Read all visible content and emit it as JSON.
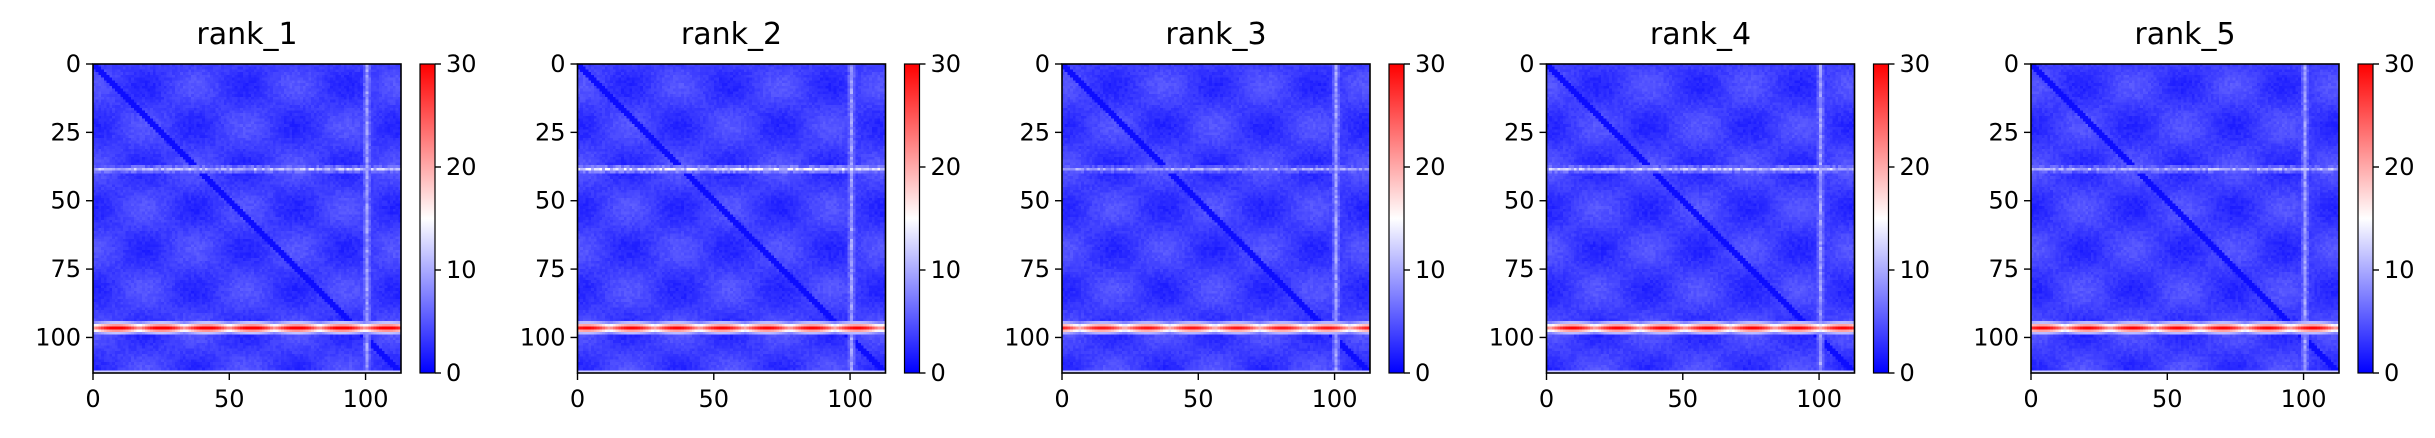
{
  "chart_data": [
    {
      "type": "heatmap",
      "title": "rank_1",
      "xlim": [
        0,
        113
      ],
      "ylim": [
        113,
        0
      ],
      "xticks": [
        0,
        50,
        100
      ],
      "yticks": [
        0,
        25,
        50,
        75,
        100
      ],
      "colorbar": {
        "range": [
          0,
          30
        ],
        "ticks": [
          0,
          10,
          20,
          30
        ],
        "colors": [
          "#0000ff",
          "#ffffff",
          "#ff0000"
        ]
      },
      "matrix_size": 113,
      "features": {
        "diagonal": "low values along the main diagonal",
        "hot_band_row": 96,
        "hot_band_x_range": [
          0,
          113
        ],
        "hot_band_value": 28,
        "warm_band_row": 38,
        "warm_band_value": 13,
        "light_column": 100,
        "light_column_value": 9,
        "bottom_edge_row": 112,
        "bottom_edge_value": 12,
        "background_value": 3
      }
    },
    {
      "type": "heatmap",
      "title": "rank_2",
      "xlim": [
        0,
        113
      ],
      "ylim": [
        113,
        0
      ],
      "xticks": [
        0,
        50,
        100
      ],
      "yticks": [
        0,
        25,
        50,
        75,
        100
      ],
      "colorbar": {
        "range": [
          0,
          30
        ],
        "ticks": [
          0,
          10,
          20,
          30
        ],
        "colors": [
          "#0000ff",
          "#ffffff",
          "#ff0000"
        ]
      },
      "matrix_size": 113,
      "features": {
        "diagonal": "low values along the main diagonal",
        "hot_band_row": 96,
        "hot_band_x_range": [
          0,
          113
        ],
        "hot_band_value": 27,
        "warm_band_row": 38,
        "warm_band_value": 15,
        "light_column": 100,
        "light_column_value": 9,
        "bottom_edge_row": 112,
        "bottom_edge_value": 12,
        "background_value": 3
      }
    },
    {
      "type": "heatmap",
      "title": "rank_3",
      "xlim": [
        0,
        113
      ],
      "ylim": [
        113,
        0
      ],
      "xticks": [
        0,
        50,
        100
      ],
      "yticks": [
        0,
        25,
        50,
        75,
        100
      ],
      "colorbar": {
        "range": [
          0,
          30
        ],
        "ticks": [
          0,
          10,
          20,
          30
        ],
        "colors": [
          "#0000ff",
          "#ffffff",
          "#ff0000"
        ]
      },
      "matrix_size": 113,
      "features": {
        "diagonal": "low values along the main diagonal",
        "hot_band_row": 96,
        "hot_band_x_range": [
          0,
          113
        ],
        "hot_band_value": 26,
        "warm_band_row": 38,
        "warm_band_value": 11,
        "light_column": 100,
        "light_column_value": 9,
        "bottom_edge_row": 112,
        "bottom_edge_value": 12,
        "background_value": 3
      }
    },
    {
      "type": "heatmap",
      "title": "rank_4",
      "xlim": [
        0,
        113
      ],
      "ylim": [
        113,
        0
      ],
      "xticks": [
        0,
        50,
        100
      ],
      "yticks": [
        0,
        25,
        50,
        75,
        100
      ],
      "colorbar": {
        "range": [
          0,
          30
        ],
        "ticks": [
          0,
          10,
          20,
          30
        ],
        "colors": [
          "#0000ff",
          "#ffffff",
          "#ff0000"
        ]
      },
      "matrix_size": 113,
      "features": {
        "diagonal": "low values along the main diagonal",
        "hot_band_row": 96,
        "hot_band_x_range": [
          0,
          113
        ],
        "hot_band_value": 27,
        "warm_band_row": 38,
        "warm_band_value": 13,
        "light_column": 100,
        "light_column_value": 9,
        "bottom_edge_row": 112,
        "bottom_edge_value": 12,
        "background_value": 3
      }
    },
    {
      "type": "heatmap",
      "title": "rank_5",
      "xlim": [
        0,
        113
      ],
      "ylim": [
        113,
        0
      ],
      "xticks": [
        0,
        50,
        100
      ],
      "yticks": [
        0,
        25,
        50,
        75,
        100
      ],
      "colorbar": {
        "range": [
          0,
          30
        ],
        "ticks": [
          0,
          10,
          20,
          30
        ],
        "colors": [
          "#0000ff",
          "#ffffff",
          "#ff0000"
        ]
      },
      "matrix_size": 113,
      "features": {
        "diagonal": "low values along the main diagonal",
        "hot_band_row": 96,
        "hot_band_x_range": [
          0,
          113
        ],
        "hot_band_value": 27,
        "warm_band_row": 38,
        "warm_band_value": 12,
        "light_column": 100,
        "light_column_value": 9,
        "bottom_edge_row": 112,
        "bottom_edge_value": 12,
        "background_value": 3
      }
    }
  ]
}
